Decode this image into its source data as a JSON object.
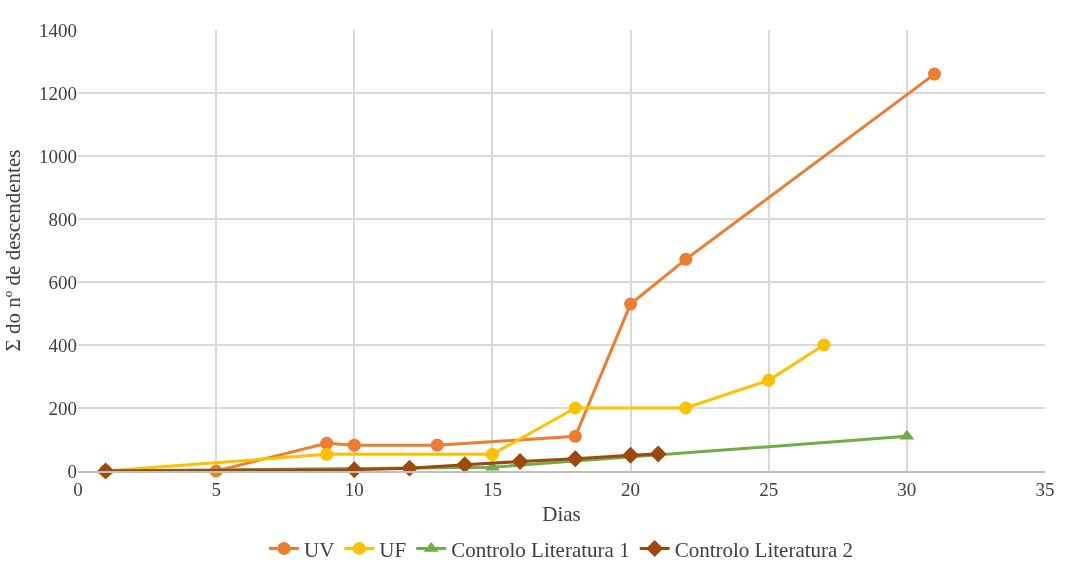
{
  "chart_data": {
    "type": "line",
    "xlabel": "Dias",
    "ylabel": "Σ do nº de descendentes",
    "xlim": [
      0,
      35
    ],
    "xticks": [
      0,
      5,
      10,
      15,
      20,
      25,
      30,
      35
    ],
    "ylim": [
      0,
      1400
    ],
    "yticks": [
      0,
      200,
      400,
      600,
      800,
      1000,
      1200,
      1400
    ],
    "grid": true,
    "legend": "bottom",
    "line_style": "solid",
    "series": [
      {
        "name": "UV",
        "color": "#ed7d31",
        "marker": "circle",
        "x": [
          1,
          5,
          9,
          10,
          13,
          18,
          20,
          22,
          31
        ],
        "values": [
          0,
          0,
          88,
          82,
          82,
          110,
          530,
          672,
          1260
        ]
      },
      {
        "name": "UF",
        "color": "#ffc000",
        "marker": "circle",
        "x": [
          1,
          9,
          15,
          18,
          22,
          25,
          27
        ],
        "values": [
          0,
          53,
          53,
          200,
          200,
          288,
          400
        ]
      },
      {
        "name": "Controlo Literatura 1",
        "color": "#70ad47",
        "marker": "triangle",
        "x": [
          1,
          15,
          30
        ],
        "values": [
          0,
          12,
          110
        ]
      },
      {
        "name": "Controlo Literatura 2",
        "color": "#9e480e",
        "marker": "diamond",
        "x": [
          1,
          10,
          12,
          14,
          16,
          18,
          20,
          21
        ],
        "values": [
          0,
          4,
          9,
          20,
          30,
          39,
          50,
          54
        ]
      }
    ]
  }
}
